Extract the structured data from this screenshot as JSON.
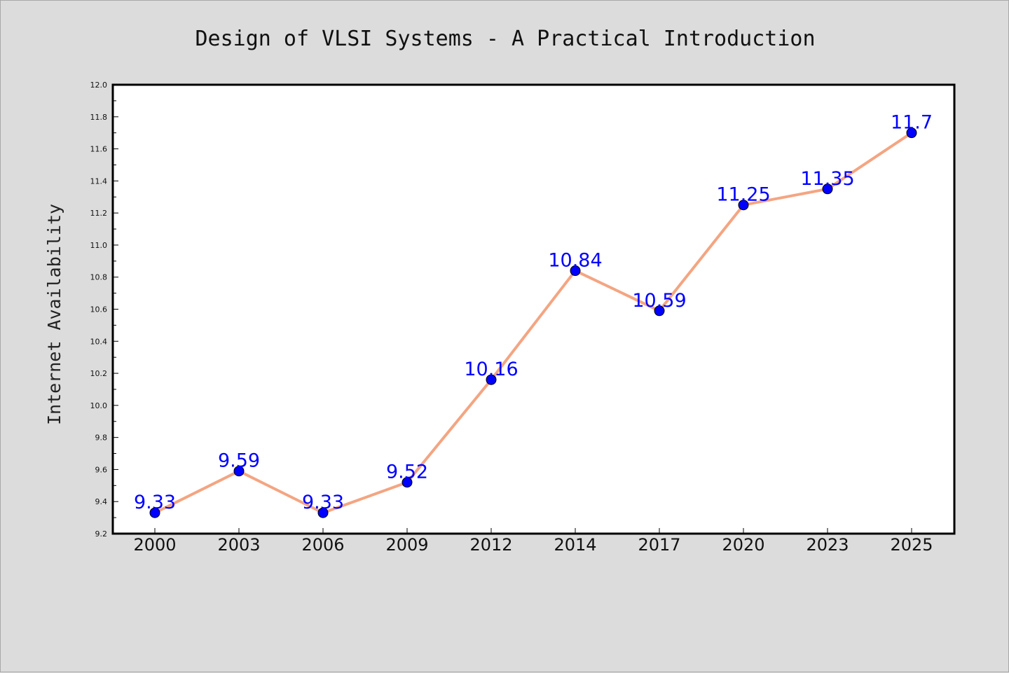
{
  "chart_data": {
    "type": "line",
    "title": "Design of VLSI Systems - A Practical Introduction",
    "xlabel": "",
    "ylabel": "Internet Availability",
    "categories": [
      "2000",
      "2003",
      "2006",
      "2009",
      "2012",
      "2014",
      "2017",
      "2020",
      "2023",
      "2025"
    ],
    "values": [
      9.33,
      9.59,
      9.33,
      9.52,
      10.16,
      10.84,
      10.59,
      11.25,
      11.35,
      11.7
    ],
    "data_labels": [
      "9.33",
      "9.59",
      "9.33",
      "9.52",
      "10.16",
      "10.84",
      "10.59",
      "11.25",
      "11.35",
      "11.7"
    ],
    "ylim": [
      9.2,
      12.0
    ],
    "yticks": [
      "9.2",
      "9.4",
      "9.6",
      "9.8",
      "10.0",
      "10.2",
      "10.4",
      "10.6",
      "10.8",
      "11.0",
      "11.2",
      "11.4",
      "11.6",
      "11.8",
      "12.0"
    ],
    "grid": false,
    "legend": "none",
    "colors": {
      "line": "#f4a582",
      "marker": "#0000ff",
      "label": "#0000ff",
      "background": "#dcdcdc",
      "plot_background": "#ffffff"
    }
  }
}
